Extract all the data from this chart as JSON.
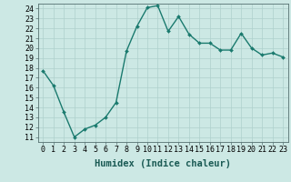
{
  "x": [
    0,
    1,
    2,
    3,
    4,
    5,
    6,
    7,
    8,
    9,
    10,
    11,
    12,
    13,
    14,
    15,
    16,
    17,
    18,
    19,
    20,
    21,
    22,
    23
  ],
  "y": [
    17.7,
    16.2,
    13.5,
    11.0,
    11.8,
    12.2,
    13.0,
    14.5,
    19.7,
    22.2,
    24.1,
    24.3,
    21.7,
    23.2,
    21.4,
    20.5,
    20.5,
    19.8,
    19.8,
    21.5,
    20.0,
    19.3,
    19.5,
    19.1
  ],
  "line_color": "#1a7a6e",
  "marker": "D",
  "marker_size": 2.0,
  "line_width": 1.0,
  "bg_color": "#cce8e4",
  "grid_color": "#aed0cc",
  "xlabel": "Humidex (Indice chaleur)",
  "xlabel_fontsize": 7.5,
  "tick_fontsize": 6.0,
  "ylim": [
    10.5,
    24.5
  ],
  "xlim": [
    -0.5,
    23.5
  ],
  "yticks": [
    11,
    12,
    13,
    14,
    15,
    16,
    17,
    18,
    19,
    20,
    21,
    22,
    23,
    24
  ],
  "xticks": [
    0,
    1,
    2,
    3,
    4,
    5,
    6,
    7,
    8,
    9,
    10,
    11,
    12,
    13,
    14,
    15,
    16,
    17,
    18,
    19,
    20,
    21,
    22,
    23
  ]
}
